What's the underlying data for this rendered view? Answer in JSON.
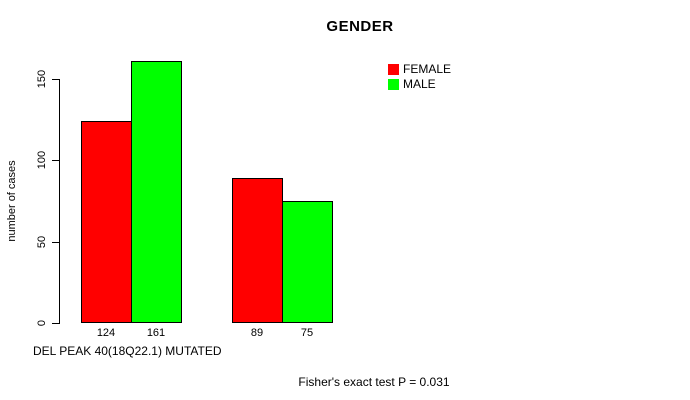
{
  "chart_data": {
    "type": "bar",
    "title": "GENDER",
    "xlabel": "DEL PEAK 40(18Q22.1) MUTATED",
    "ylabel": "number of cases",
    "yticks": [
      0,
      50,
      100,
      150
    ],
    "ylim": [
      0,
      165
    ],
    "grid": false,
    "legend_position": "top-right",
    "categories": [
      "",
      ""
    ],
    "series": [
      {
        "name": "FEMALE",
        "color": "#FF0000",
        "values": [
          124,
          89
        ]
      },
      {
        "name": "MALE",
        "color": "#00FF00",
        "values": [
          161,
          75
        ]
      }
    ],
    "bar_value_labels": [
      "124",
      "161",
      "89",
      "75"
    ],
    "annotation": "Fisher's exact test P = 0.031"
  },
  "colors": {
    "background": "#FFFFFF",
    "axis": "#000000",
    "text": "#000000"
  }
}
